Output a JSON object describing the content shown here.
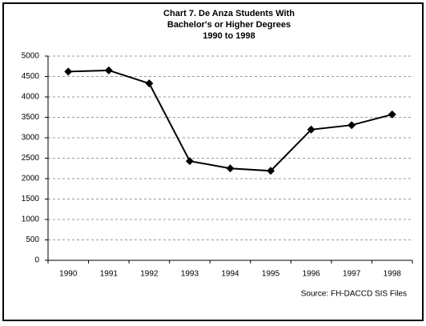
{
  "chart_data": {
    "type": "line",
    "title": [
      "Chart 7. De Anza Students With",
      "Bachelor's or Higher Degrees",
      "1990 to 1998"
    ],
    "source": "Source: FH-DACCD SIS Files",
    "categories": [
      "1990",
      "1991",
      "1992",
      "1993",
      "1994",
      "1995",
      "1996",
      "1997",
      "1998"
    ],
    "series": [
      {
        "name": "Students",
        "color": "#000000",
        "values": [
          4620,
          4650,
          4330,
          2430,
          2250,
          2190,
          3200,
          3310,
          3570
        ]
      }
    ],
    "ylim": [
      0,
      5000
    ],
    "yticks": [
      0,
      500,
      1000,
      1500,
      2000,
      2500,
      3000,
      3500,
      4000,
      4500,
      5000
    ],
    "grid": true
  }
}
